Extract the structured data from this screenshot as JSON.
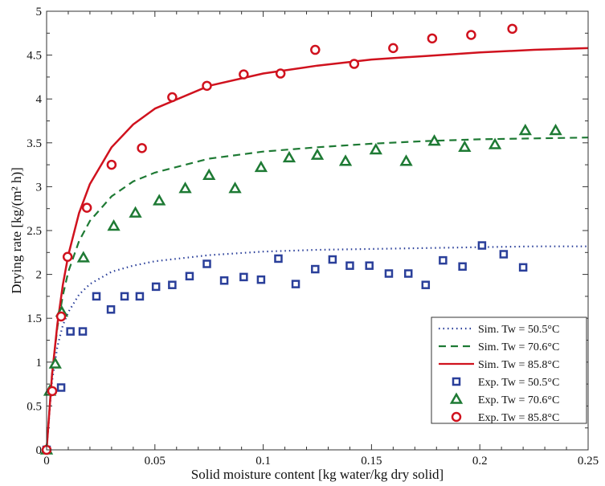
{
  "chart_data": {
    "type": "scatter",
    "xlabel": "Solid moisture content [kg water/kg dry solid]",
    "ylabel": "Drying rate [kg/(m² h)]",
    "xlim": [
      0,
      0.25
    ],
    "ylim": [
      0,
      5
    ],
    "xticks": [
      "0",
      "0.05",
      "0.1",
      "0.15",
      "0.2",
      "0.25"
    ],
    "yticks": [
      "0",
      "0.5",
      "1",
      "1.5",
      "2",
      "2.5",
      "3",
      "3.5",
      "4",
      "4.5",
      "5"
    ],
    "grid": false,
    "legend_position": "bottom-right",
    "curve_x": [
      0,
      0.0025,
      0.005,
      0.0075,
      0.01,
      0.015,
      0.02,
      0.03,
      0.04,
      0.05,
      0.075,
      0.1,
      0.125,
      0.15,
      0.175,
      0.2,
      0.225,
      0.25
    ],
    "series": [
      {
        "name": "Sim. Tw = 50.5°C",
        "kind": "line",
        "style": "dotted",
        "color": "#2a3f9a",
        "y": [
          0,
          0.78,
          1.18,
          1.42,
          1.57,
          1.77,
          1.89,
          2.03,
          2.1,
          2.15,
          2.22,
          2.26,
          2.28,
          2.29,
          2.3,
          2.31,
          2.32,
          2.32
        ]
      },
      {
        "name": "Sim. Tw = 70.6°C",
        "kind": "line",
        "style": "dashed",
        "color": "#1e7a34",
        "y": [
          0,
          0.86,
          1.4,
          1.76,
          2.03,
          2.38,
          2.61,
          2.89,
          3.06,
          3.16,
          3.32,
          3.4,
          3.45,
          3.49,
          3.52,
          3.54,
          3.55,
          3.56
        ]
      },
      {
        "name": "Sim. Tw = 85.8°C",
        "kind": "line",
        "style": "solid",
        "color": "#d0121e",
        "y": [
          0,
          0.85,
          1.44,
          1.88,
          2.22,
          2.7,
          3.03,
          3.45,
          3.71,
          3.89,
          4.15,
          4.29,
          4.38,
          4.45,
          4.49,
          4.53,
          4.56,
          4.58
        ]
      },
      {
        "name": "Exp. Tw = 50.5°C",
        "kind": "points",
        "marker": "square",
        "color": "#2a3f9a",
        "points": [
          [
            0,
            0
          ],
          [
            0.0067,
            0.71
          ],
          [
            0.011,
            1.35
          ],
          [
            0.0167,
            1.35
          ],
          [
            0.023,
            1.75
          ],
          [
            0.0297,
            1.6
          ],
          [
            0.036,
            1.75
          ],
          [
            0.043,
            1.75
          ],
          [
            0.0505,
            1.86
          ],
          [
            0.058,
            1.88
          ],
          [
            0.066,
            1.98
          ],
          [
            0.074,
            2.12
          ],
          [
            0.082,
            1.93
          ],
          [
            0.091,
            1.97
          ],
          [
            0.099,
            1.94
          ],
          [
            0.107,
            2.18
          ],
          [
            0.115,
            1.89
          ],
          [
            0.124,
            2.06
          ],
          [
            0.132,
            2.17
          ],
          [
            0.14,
            2.1
          ],
          [
            0.149,
            2.1
          ],
          [
            0.158,
            2.01
          ],
          [
            0.167,
            2.01
          ],
          [
            0.175,
            1.88
          ],
          [
            0.183,
            2.16
          ],
          [
            0.192,
            2.09
          ],
          [
            0.201,
            2.33
          ],
          [
            0.211,
            2.23
          ],
          [
            0.22,
            2.08
          ]
        ]
      },
      {
        "name": "Exp. Tw = 70.6°C",
        "kind": "points",
        "marker": "triangle",
        "color": "#1e7a34",
        "points": [
          [
            0,
            0
          ],
          [
            0.0015,
            0.67
          ],
          [
            0.004,
            0.98
          ],
          [
            0.007,
            1.57
          ],
          [
            0.017,
            2.19
          ],
          [
            0.031,
            2.55
          ],
          [
            0.041,
            2.7
          ],
          [
            0.052,
            2.84
          ],
          [
            0.064,
            2.98
          ],
          [
            0.075,
            3.13
          ],
          [
            0.087,
            2.98
          ],
          [
            0.099,
            3.22
          ],
          [
            0.112,
            3.33
          ],
          [
            0.125,
            3.36
          ],
          [
            0.138,
            3.29
          ],
          [
            0.152,
            3.42
          ],
          [
            0.166,
            3.29
          ],
          [
            0.179,
            3.52
          ],
          [
            0.193,
            3.45
          ],
          [
            0.207,
            3.48
          ],
          [
            0.221,
            3.64
          ],
          [
            0.235,
            3.64
          ]
        ]
      },
      {
        "name": "Exp. Tw = 85.8°C",
        "kind": "points",
        "marker": "circle",
        "color": "#d0121e",
        "points": [
          [
            0,
            0
          ],
          [
            0.0026,
            0.67
          ],
          [
            0.0067,
            1.52
          ],
          [
            0.0097,
            2.2
          ],
          [
            0.0186,
            2.76
          ],
          [
            0.03,
            3.25
          ],
          [
            0.044,
            3.44
          ],
          [
            0.058,
            4.02
          ],
          [
            0.074,
            4.15
          ],
          [
            0.091,
            4.28
          ],
          [
            0.108,
            4.29
          ],
          [
            0.124,
            4.56
          ],
          [
            0.142,
            4.4
          ],
          [
            0.16,
            4.58
          ],
          [
            0.178,
            4.69
          ],
          [
            0.196,
            4.73
          ],
          [
            0.215,
            4.8
          ]
        ]
      }
    ]
  }
}
